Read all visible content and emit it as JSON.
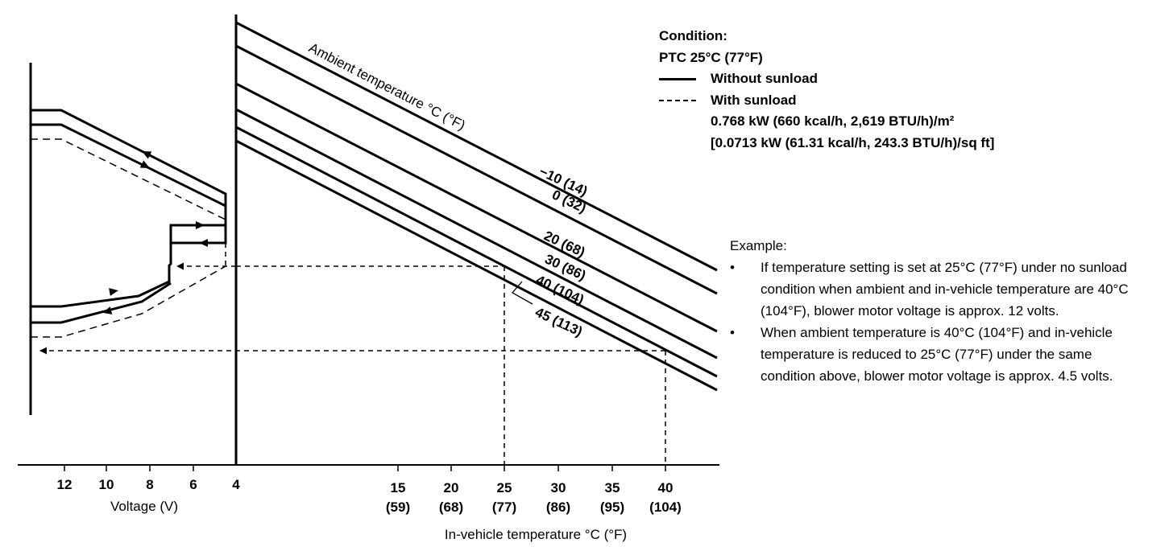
{
  "condition": {
    "heading": "Condition:",
    "ptc": "PTC 25°C (77°F)",
    "legend_solid": "Without sunload",
    "legend_dashed": "With sunload",
    "sunload_metric": "0.768 kW (660 kcal/h, 2,619 BTU/h)/m²",
    "sunload_imperial": "[0.0713 kW (61.31 kcal/h, 243.3 BTU/h)/sq ft]"
  },
  "example": {
    "heading": "Example:",
    "bullet": "•",
    "items": [
      "If temperature setting is set at 25°C (77°F) under no sunload condition when ambient and in-vehicle temperature are 40°C (104°F), blower motor voltage is approx. 12 volts.",
      "When ambient temperature is 40°C (104°F) and in-vehicle temperature is reduced to 25°C (77°F) under the same condition above, blower motor voltage is approx. 4.5 volts."
    ]
  },
  "chart_data": {
    "type": "line",
    "ambient_label": "Ambient temperature °C (°F)",
    "xlabel": "In-vehicle temperature °C (°F)",
    "x_ticks": [
      {
        "c": "15",
        "f": "(59)"
      },
      {
        "c": "20",
        "f": "(68)"
      },
      {
        "c": "25",
        "f": "(77)"
      },
      {
        "c": "30",
        "f": "(86)"
      },
      {
        "c": "35",
        "f": "(95)"
      },
      {
        "c": "40",
        "f": "(104)"
      }
    ],
    "voltage_label": "Voltage (V)",
    "voltage_ticks": [
      "12",
      "10",
      "8",
      "6",
      "4"
    ],
    "ambient_series": [
      {
        "name": "−10 (14)"
      },
      {
        "name": "0 (32)"
      },
      {
        "name": "20 (68)"
      },
      {
        "name": "30 (86)"
      },
      {
        "name": "40 (104)"
      },
      {
        "name": "45 (113)"
      }
    ]
  }
}
